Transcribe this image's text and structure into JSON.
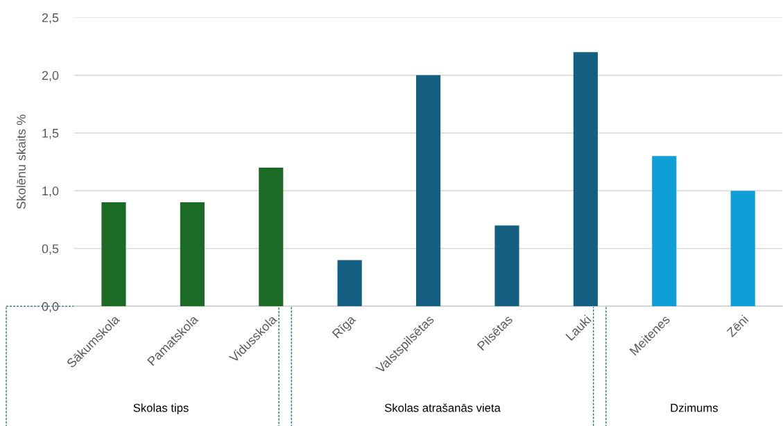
{
  "chart_data": {
    "type": "bar",
    "ylabel": "Skolēnu skaits %",
    "categories": [
      "Sākumskola",
      "Pamatskola",
      "Vidusskola",
      "Rīga",
      "Valstspilsētas",
      "Pilsētas",
      "Lauki",
      "Meitenes",
      "Zēni"
    ],
    "values": [
      0.9,
      0.9,
      1.2,
      0.4,
      2.0,
      0.7,
      2.2,
      1.3,
      1.0
    ],
    "colors": [
      "#1b6b27",
      "#1b6b27",
      "#1b6b27",
      "#156082",
      "#156082",
      "#156082",
      "#156082",
      "#0f9ed5",
      "#0f9ed5"
    ],
    "ylim": [
      0,
      2.5
    ],
    "yticks": [
      {
        "value": 0,
        "label": "0,0"
      },
      {
        "value": 0.5,
        "label": "0,5"
      },
      {
        "value": 1.0,
        "label": "1,0"
      },
      {
        "value": 1.5,
        "label": "1,5"
      },
      {
        "value": 2.0,
        "label": "2,0"
      },
      {
        "value": 2.5,
        "label": "2,5"
      }
    ],
    "grid": "y",
    "annotations": [
      "Skolas tips",
      "Skolas atrašanās vieta",
      "Dzimums"
    ]
  }
}
